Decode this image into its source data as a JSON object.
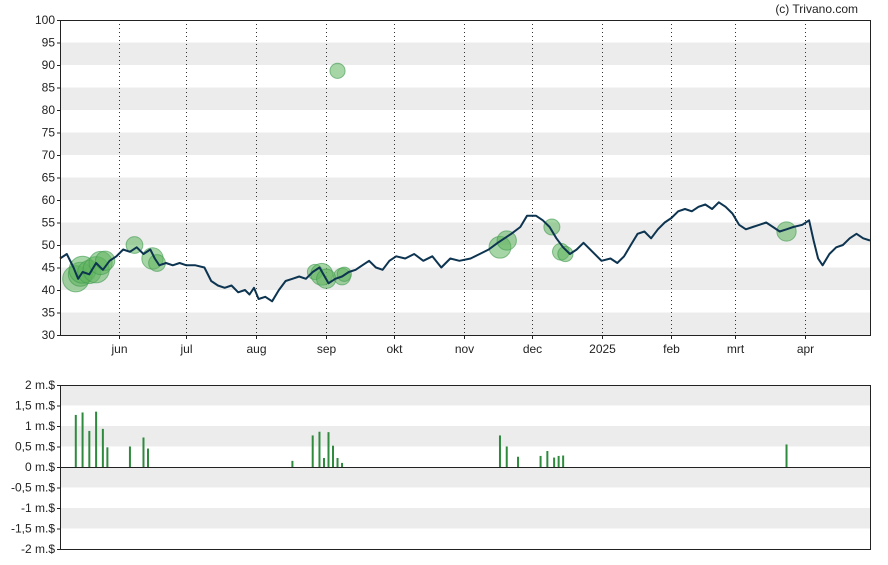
{
  "credit": "(c) Trivano.com",
  "colors": {
    "price_line": "#0d3450",
    "bubble_fill": "#5cb35c",
    "volume_bar": "#2e8b3e",
    "band": "#ececec",
    "axis": "#222222"
  },
  "chart_data": [
    {
      "type": "line",
      "title": "",
      "ylim": [
        30,
        100
      ],
      "yticks": [
        "30",
        "35",
        "40",
        "45",
        "50",
        "55",
        "60",
        "65",
        "70",
        "75",
        "80",
        "85",
        "90",
        "95",
        "100"
      ],
      "x_dates": [
        "2024-05-06",
        "2025-04-30"
      ],
      "month_ticks": [
        {
          "label": "jun",
          "date": "2024-06-01"
        },
        {
          "label": "jul",
          "date": "2024-07-01"
        },
        {
          "label": "aug",
          "date": "2024-08-01"
        },
        {
          "label": "sep",
          "date": "2024-09-01"
        },
        {
          "label": "okt",
          "date": "2024-10-01"
        },
        {
          "label": "nov",
          "date": "2024-11-01"
        },
        {
          "label": "dec",
          "date": "2024-12-01"
        },
        {
          "label": "2025",
          "date": "2025-01-01"
        },
        {
          "label": "feb",
          "date": "2025-02-01"
        },
        {
          "label": "mrt",
          "date": "2025-03-01"
        },
        {
          "label": "apr",
          "date": "2025-04-01"
        }
      ],
      "series": [
        {
          "values": [
            [
              "2024-05-06",
              47
            ],
            [
              "2024-05-09",
              48
            ],
            [
              "2024-05-12",
              45
            ],
            [
              "2024-05-14",
              42.5
            ],
            [
              "2024-05-16",
              44
            ],
            [
              "2024-05-19",
              43.5
            ],
            [
              "2024-05-22",
              46
            ],
            [
              "2024-05-25",
              44.5
            ],
            [
              "2024-05-28",
              46.5
            ],
            [
              "2024-05-31",
              47.5
            ],
            [
              "2024-06-03",
              49
            ],
            [
              "2024-06-06",
              48.5
            ],
            [
              "2024-06-09",
              49.5
            ],
            [
              "2024-06-12",
              48
            ],
            [
              "2024-06-15",
              49
            ],
            [
              "2024-06-17",
              47
            ],
            [
              "2024-06-19",
              45.5
            ],
            [
              "2024-06-22",
              46
            ],
            [
              "2024-06-25",
              45.5
            ],
            [
              "2024-06-28",
              46
            ],
            [
              "2024-07-01",
              45.5
            ],
            [
              "2024-07-05",
              45.5
            ],
            [
              "2024-07-09",
              45
            ],
            [
              "2024-07-12",
              42
            ],
            [
              "2024-07-15",
              41
            ],
            [
              "2024-07-18",
              40.5
            ],
            [
              "2024-07-21",
              41
            ],
            [
              "2024-07-24",
              39.5
            ],
            [
              "2024-07-27",
              40
            ],
            [
              "2024-07-29",
              39
            ],
            [
              "2024-07-31",
              40.5
            ],
            [
              "2024-08-02",
              38
            ],
            [
              "2024-08-05",
              38.5
            ],
            [
              "2024-08-08",
              37.5
            ],
            [
              "2024-08-11",
              40
            ],
            [
              "2024-08-14",
              42
            ],
            [
              "2024-08-17",
              42.5
            ],
            [
              "2024-08-20",
              43
            ],
            [
              "2024-08-23",
              42.5
            ],
            [
              "2024-08-26",
              44
            ],
            [
              "2024-08-29",
              45
            ],
            [
              "2024-09-02",
              41.5
            ],
            [
              "2024-09-05",
              42.5
            ],
            [
              "2024-09-08",
              43
            ],
            [
              "2024-09-11",
              44
            ],
            [
              "2024-09-14",
              44.5
            ],
            [
              "2024-09-17",
              45.5
            ],
            [
              "2024-09-20",
              46.5
            ],
            [
              "2024-09-23",
              45
            ],
            [
              "2024-09-26",
              44.5
            ],
            [
              "2024-09-29",
              46.5
            ],
            [
              "2024-10-02",
              47.5
            ],
            [
              "2024-10-06",
              47
            ],
            [
              "2024-10-10",
              48
            ],
            [
              "2024-10-14",
              46.5
            ],
            [
              "2024-10-18",
              47.5
            ],
            [
              "2024-10-22",
              45
            ],
            [
              "2024-10-26",
              47
            ],
            [
              "2024-10-30",
              46.5
            ],
            [
              "2024-11-04",
              47
            ],
            [
              "2024-11-08",
              48
            ],
            [
              "2024-11-12",
              49
            ],
            [
              "2024-11-16",
              50.5
            ],
            [
              "2024-11-19",
              51.5
            ],
            [
              "2024-11-22",
              52.5
            ],
            [
              "2024-11-26",
              54
            ],
            [
              "2024-11-29",
              56.5
            ],
            [
              "2024-12-03",
              56.5
            ],
            [
              "2024-12-06",
              55.5
            ],
            [
              "2024-12-09",
              54
            ],
            [
              "2024-12-12",
              51.5
            ],
            [
              "2024-12-15",
              49.5
            ],
            [
              "2024-12-18",
              48
            ],
            [
              "2024-12-21",
              49
            ],
            [
              "2024-12-24",
              50.5
            ],
            [
              "2024-12-28",
              48.5
            ],
            [
              "2025-01-01",
              46.5
            ],
            [
              "2025-01-05",
              47
            ],
            [
              "2025-01-08",
              46
            ],
            [
              "2025-01-11",
              47.5
            ],
            [
              "2025-01-14",
              50
            ],
            [
              "2025-01-17",
              52.5
            ],
            [
              "2025-01-20",
              53
            ],
            [
              "2025-01-23",
              51.5
            ],
            [
              "2025-01-26",
              53.5
            ],
            [
              "2025-01-29",
              55
            ],
            [
              "2025-02-01",
              56
            ],
            [
              "2025-02-04",
              57.5
            ],
            [
              "2025-02-07",
              58
            ],
            [
              "2025-02-10",
              57.5
            ],
            [
              "2025-02-13",
              58.5
            ],
            [
              "2025-02-16",
              59
            ],
            [
              "2025-02-19",
              58
            ],
            [
              "2025-02-22",
              59.5
            ],
            [
              "2025-02-25",
              58.5
            ],
            [
              "2025-02-28",
              57
            ],
            [
              "2025-03-03",
              54.5
            ],
            [
              "2025-03-06",
              53.5
            ],
            [
              "2025-03-09",
              54
            ],
            [
              "2025-03-12",
              54.5
            ],
            [
              "2025-03-15",
              55
            ],
            [
              "2025-03-18",
              54
            ],
            [
              "2025-03-21",
              53
            ],
            [
              "2025-03-24",
              53.5
            ],
            [
              "2025-03-27",
              54
            ],
            [
              "2025-03-31",
              54.5
            ],
            [
              "2025-04-03",
              55.5
            ],
            [
              "2025-04-05",
              51
            ],
            [
              "2025-04-07",
              47
            ],
            [
              "2025-04-09",
              45.5
            ],
            [
              "2025-04-12",
              48
            ],
            [
              "2025-04-15",
              49.5
            ],
            [
              "2025-04-18",
              50
            ],
            [
              "2025-04-21",
              51.5
            ],
            [
              "2025-04-24",
              52.5
            ],
            [
              "2025-04-27",
              51.5
            ],
            [
              "2025-04-30",
              51
            ]
          ]
        }
      ],
      "bubbles": [
        [
          "2024-05-13",
          42.5,
          1.3
        ],
        [
          "2024-05-15",
          43.5,
          1.0
        ],
        [
          "2024-05-16",
          44.5,
          1.4
        ],
        [
          "2024-05-19",
          44,
          0.9
        ],
        [
          "2024-05-22",
          44.5,
          1.3
        ],
        [
          "2024-05-24",
          46,
          0.9
        ],
        [
          "2024-05-26",
          46.5,
          0.5
        ],
        [
          "2024-06-08",
          50,
          0.3
        ],
        [
          "2024-06-16",
          47,
          0.7
        ],
        [
          "2024-06-18",
          46,
          0.3
        ],
        [
          "2024-08-27",
          44,
          0.2
        ],
        [
          "2024-08-30",
          43.5,
          0.75
        ],
        [
          "2024-09-01",
          42.5,
          0.5
        ],
        [
          "2024-09-06",
          88.7,
          0.2
        ],
        [
          "2024-09-08",
          43,
          0.3
        ],
        [
          "2024-09-09",
          43.5,
          0.15
        ],
        [
          "2024-11-17",
          49.5,
          0.75
        ],
        [
          "2024-11-20",
          51,
          0.5
        ],
        [
          "2024-12-10",
          54,
          0.25
        ],
        [
          "2024-12-14",
          48.5,
          0.3
        ],
        [
          "2024-12-16",
          48,
          0.2
        ],
        [
          "2025-03-24",
          53,
          0.5
        ]
      ]
    },
    {
      "type": "bar",
      "title": "",
      "ylim": [
        -2,
        2
      ],
      "yticks": [
        "-2 m.$",
        "-1,5 m.$",
        "-1 m.$",
        "-0,5 m.$",
        "0 m.$",
        "0,5 m.$",
        "1 m.$",
        "1,5 m.$",
        "2 m.$"
      ],
      "values": [
        [
          "2024-05-13",
          1.27
        ],
        [
          "2024-05-16",
          1.33
        ],
        [
          "2024-05-19",
          0.88
        ],
        [
          "2024-05-22",
          1.35
        ],
        [
          "2024-05-25",
          0.93
        ],
        [
          "2024-05-27",
          0.48
        ],
        [
          "2024-06-06",
          0.5
        ],
        [
          "2024-06-12",
          0.72
        ],
        [
          "2024-06-14",
          0.45
        ],
        [
          "2024-08-17",
          0.15
        ],
        [
          "2024-08-26",
          0.77
        ],
        [
          "2024-08-29",
          0.86
        ],
        [
          "2024-08-31",
          0.22
        ],
        [
          "2024-09-02",
          0.85
        ],
        [
          "2024-09-04",
          0.52
        ],
        [
          "2024-09-06",
          0.22
        ],
        [
          "2024-09-08",
          0.1
        ],
        [
          "2024-11-17",
          0.77
        ],
        [
          "2024-11-20",
          0.5
        ],
        [
          "2024-11-25",
          0.25
        ],
        [
          "2024-12-05",
          0.27
        ],
        [
          "2024-12-08",
          0.39
        ],
        [
          "2024-12-11",
          0.23
        ],
        [
          "2024-12-13",
          0.27
        ],
        [
          "2024-12-15",
          0.28
        ],
        [
          "2025-03-24",
          0.55
        ]
      ]
    }
  ]
}
